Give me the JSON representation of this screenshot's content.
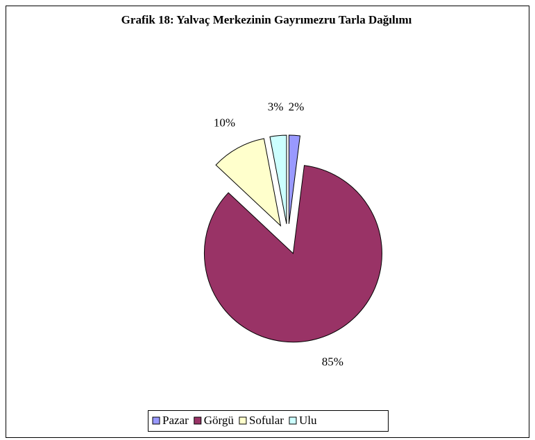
{
  "chart_data": {
    "type": "pie",
    "title": "Grafik 18: Yalvaç Merkezinin Gayrımezru Tarla Dağılımı",
    "categories": [
      "Pazar",
      "Görgü",
      "Sofular",
      "Ulu"
    ],
    "values": [
      2,
      85,
      10,
      3
    ],
    "value_labels": [
      "2%",
      "85%",
      "10%",
      "3%"
    ],
    "colors": [
      "#9999ff",
      "#993366",
      "#ffffcc",
      "#ccffff"
    ],
    "legend": "bottom"
  }
}
